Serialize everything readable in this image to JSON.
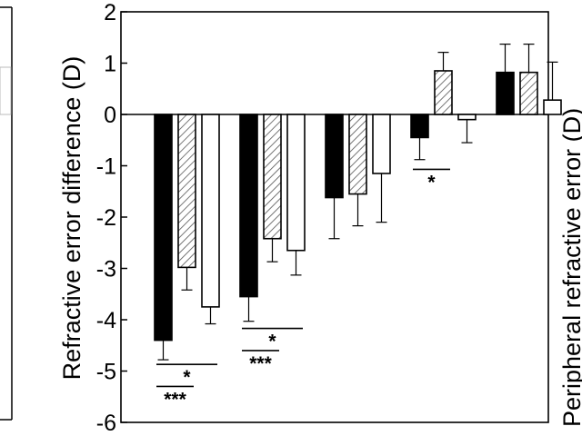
{
  "chart_data": {
    "type": "bar",
    "ylabel": "Refractive error difference (D)",
    "ylabel_right": "Peripheral refractive error (D)",
    "ylim": [
      -6,
      2
    ],
    "yticks": [
      -6,
      -5,
      -4,
      -3,
      -2,
      -1,
      0,
      1,
      2
    ],
    "ytick_labels": [
      "-6",
      "-5",
      "-4",
      "-3",
      "-2",
      "-1",
      "0",
      "1",
      "2"
    ],
    "grid": false,
    "series": [
      {
        "fill": "solid",
        "color": "#000000",
        "values": [
          -4.4,
          -3.55,
          -1.62,
          -0.45,
          0.82
        ],
        "errors": [
          0.38,
          0.48,
          0.8,
          0.43,
          0.55
        ]
      },
      {
        "fill": "hatched",
        "color": "#000000",
        "values": [
          -2.98,
          -2.42,
          -1.55,
          0.85,
          0.82
        ],
        "errors": [
          0.44,
          0.45,
          0.62,
          0.36,
          0.55
        ]
      },
      {
        "fill": "open",
        "color": "#000000",
        "values": [
          -3.75,
          -2.65,
          -1.15,
          -0.1,
          0.28
        ],
        "errors": [
          0.33,
          0.48,
          0.95,
          0.45,
          0.74
        ]
      }
    ],
    "annotations": [
      {
        "text": "***",
        "group": 0,
        "pair": [
          0,
          1
        ],
        "y": -5.3
      },
      {
        "text": "*",
        "group": 0,
        "pair": [
          0,
          2
        ],
        "y": -4.87
      },
      {
        "text": "***",
        "group": 1,
        "pair": [
          0,
          1
        ],
        "y": -4.6
      },
      {
        "text": "*",
        "group": 1,
        "pair": [
          0,
          2
        ],
        "y": -4.17
      },
      {
        "text": "*",
        "group": 3,
        "pair": [
          0,
          1
        ],
        "y": -1.07
      }
    ]
  }
}
